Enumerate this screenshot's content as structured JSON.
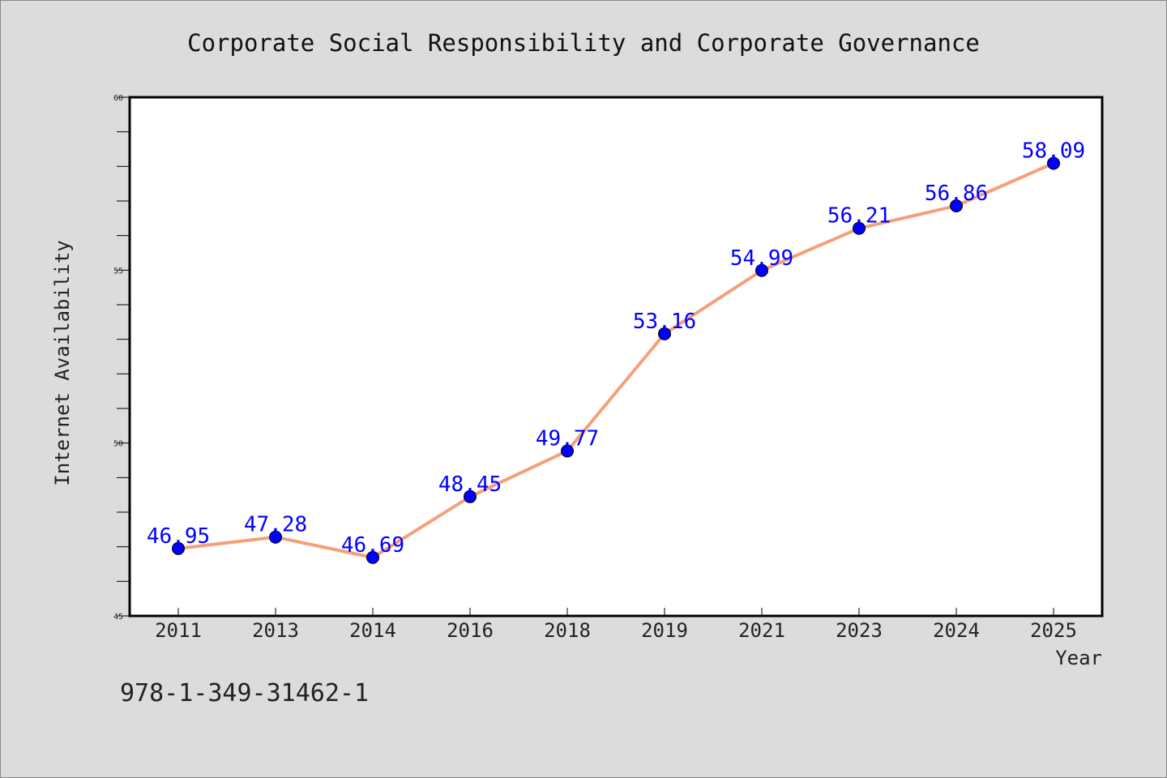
{
  "chart_data": {
    "type": "line",
    "title": "Corporate Social Responsibility and Corporate Governance",
    "xlabel": "Year",
    "ylabel": "Internet Availability",
    "categories": [
      "2011",
      "2013",
      "2014",
      "2016",
      "2018",
      "2019",
      "2021",
      "2023",
      "2024",
      "2025"
    ],
    "series": [
      {
        "values": [
          46.95,
          47.28,
          46.69,
          48.45,
          49.77,
          53.16,
          54.99,
          56.21,
          56.86,
          58.09
        ],
        "line_color": "#f4a07a",
        "marker_color": "#0000ff"
      }
    ],
    "data_labels": [
      "46.95",
      "47.28",
      "46.69",
      "48.45",
      "49.77",
      "53.16",
      "54.99",
      "56.21",
      "56.86",
      "58.09"
    ],
    "ylim": [
      45,
      60
    ],
    "y_ticks": [
      "45",
      "50",
      "55",
      "60"
    ],
    "grid": false,
    "legend": false,
    "background_color": "#dcdcdc",
    "plot_background_color": "#ffffff"
  },
  "isbn": "978-1-349-31462-1"
}
